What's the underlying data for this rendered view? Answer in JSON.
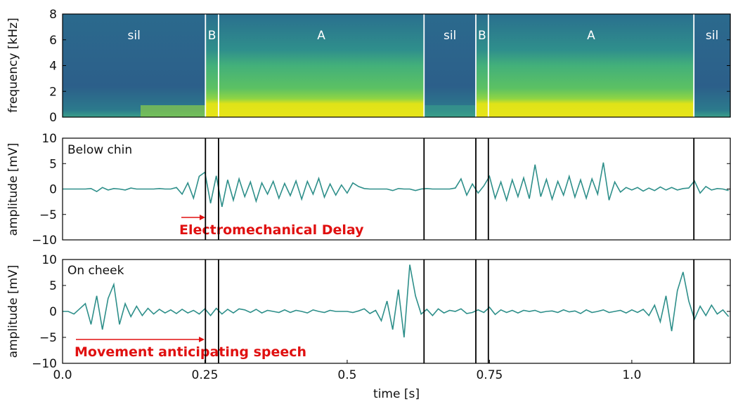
{
  "chart_data": [
    {
      "type": "spectrogram",
      "ylabel": "frequency [kHz]",
      "ylim": [
        0,
        8
      ],
      "yticks": [
        0,
        2,
        4,
        6,
        8
      ],
      "xlim": [
        0,
        1.173
      ],
      "labels": [
        "sil",
        "B",
        "A",
        "sil",
        "B",
        "A",
        "sil"
      ],
      "boundaries": [
        0.251,
        0.274,
        0.635,
        0.726,
        0.748,
        1.109
      ],
      "boundary_color": "#ffffff"
    },
    {
      "type": "line",
      "label": "Below chin",
      "note": "Electromechanical Delay",
      "ylabel": "amplitude [mV]",
      "color": "#2e8f8a",
      "ylim": [
        -10,
        10
      ],
      "yticks": [
        {
          "value": -10,
          "label": "−10"
        },
        {
          "value": -5,
          "label": "−5"
        },
        0,
        5,
        10
      ],
      "xlim": [
        0,
        1.173
      ],
      "x": [
        0,
        0.01,
        0.02,
        0.03,
        0.04,
        0.05,
        0.06,
        0.07,
        0.08,
        0.09,
        0.1,
        0.11,
        0.12,
        0.13,
        0.14,
        0.15,
        0.16,
        0.17,
        0.18,
        0.19,
        0.2,
        0.21,
        0.22,
        0.23,
        0.24,
        0.25,
        0.26,
        0.27,
        0.28,
        0.29,
        0.3,
        0.31,
        0.32,
        0.33,
        0.34,
        0.35,
        0.36,
        0.37,
        0.38,
        0.39,
        0.4,
        0.41,
        0.42,
        0.43,
        0.44,
        0.45,
        0.46,
        0.47,
        0.48,
        0.49,
        0.5,
        0.51,
        0.52,
        0.53,
        0.54,
        0.55,
        0.56,
        0.57,
        0.58,
        0.59,
        0.6,
        0.61,
        0.62,
        0.63,
        0.64,
        0.65,
        0.66,
        0.67,
        0.68,
        0.69,
        0.7,
        0.71,
        0.72,
        0.73,
        0.74,
        0.75,
        0.76,
        0.77,
        0.78,
        0.79,
        0.8,
        0.81,
        0.82,
        0.83,
        0.84,
        0.85,
        0.86,
        0.87,
        0.88,
        0.89,
        0.9,
        0.91,
        0.92,
        0.93,
        0.94,
        0.95,
        0.96,
        0.97,
        0.98,
        0.99,
        1,
        1.01,
        1.02,
        1.03,
        1.04,
        1.05,
        1.06,
        1.07,
        1.08,
        1.09,
        1.1,
        1.11,
        1.12,
        1.13,
        1.14,
        1.15,
        1.16,
        1.17
      ],
      "values": [
        0,
        0,
        0,
        0,
        0,
        0.1,
        -0.5,
        0.3,
        -0.2,
        0.1,
        0,
        -0.2,
        0.2,
        0,
        0,
        0,
        0,
        0.1,
        0,
        0,
        0.3,
        -1,
        1.2,
        -1.8,
        2.5,
        3.3,
        -2.8,
        2.6,
        -3.5,
        1.8,
        -2.2,
        2,
        -1.5,
        1.4,
        -2.4,
        1.2,
        -1,
        1.5,
        -1.8,
        1.1,
        -1.3,
        1.6,
        -2,
        1.5,
        -1,
        2.1,
        -1.6,
        1,
        -1.2,
        0.8,
        -0.8,
        1.2,
        0.5,
        0.1,
        0,
        0,
        0,
        0,
        -0.3,
        0.1,
        0,
        0,
        -0.3,
        0,
        0.1,
        0,
        0,
        0,
        0,
        0.2,
        2,
        -1.2,
        1,
        -0.8,
        0.6,
        2.5,
        -1.8,
        1.4,
        -2.2,
        1.8,
        -1.5,
        2.2,
        -1.9,
        4.8,
        -1.5,
        1.9,
        -2,
        1.5,
        -1.2,
        2.5,
        -1.6,
        1.8,
        -1.8,
        2,
        -1,
        5.2,
        -2.2,
        1.4,
        -0.6,
        0.3,
        -0.2,
        0.3,
        -0.4,
        0.2,
        -0.3,
        0.4,
        -0.2,
        0.3,
        -0.2,
        0.1,
        0.2,
        1.6,
        -0.8,
        0.5,
        -0.2,
        0.1,
        0,
        -0.3
      ]
    },
    {
      "type": "line",
      "label": "On cheek",
      "note": "Movement anticipating speech",
      "ylabel": "amplitude [mV]",
      "xlabel": "time [s]",
      "color": "#2e8f8a",
      "ylim": [
        -10,
        10
      ],
      "yticks": [
        {
          "value": -10,
          "label": "−10"
        },
        {
          "value": -5,
          "label": "−5"
        },
        0,
        5,
        10
      ],
      "xlim": [
        0,
        1.173
      ],
      "xticks": [
        {
          "value": 0,
          "label": "0.0"
        },
        0.25,
        0.5,
        0.75,
        {
          "value": 1,
          "label": "1.0"
        }
      ],
      "x": [
        0,
        0.01,
        0.02,
        0.03,
        0.04,
        0.05,
        0.06,
        0.07,
        0.08,
        0.09,
        0.1,
        0.11,
        0.12,
        0.13,
        0.14,
        0.15,
        0.16,
        0.17,
        0.18,
        0.19,
        0.2,
        0.21,
        0.22,
        0.23,
        0.24,
        0.25,
        0.26,
        0.27,
        0.28,
        0.29,
        0.3,
        0.31,
        0.32,
        0.33,
        0.34,
        0.35,
        0.36,
        0.37,
        0.38,
        0.39,
        0.4,
        0.41,
        0.42,
        0.43,
        0.44,
        0.45,
        0.46,
        0.47,
        0.48,
        0.49,
        0.5,
        0.51,
        0.52,
        0.53,
        0.54,
        0.55,
        0.56,
        0.57,
        0.58,
        0.59,
        0.6,
        0.61,
        0.62,
        0.63,
        0.64,
        0.65,
        0.66,
        0.67,
        0.68,
        0.69,
        0.7,
        0.71,
        0.72,
        0.73,
        0.74,
        0.75,
        0.76,
        0.77,
        0.78,
        0.79,
        0.8,
        0.81,
        0.82,
        0.83,
        0.84,
        0.85,
        0.86,
        0.87,
        0.88,
        0.89,
        0.9,
        0.91,
        0.92,
        0.93,
        0.94,
        0.95,
        0.96,
        0.97,
        0.98,
        0.99,
        1,
        1.01,
        1.02,
        1.03,
        1.04,
        1.05,
        1.06,
        1.07,
        1.08,
        1.09,
        1.1,
        1.11,
        1.12,
        1.13,
        1.14,
        1.15,
        1.16,
        1.17
      ],
      "values": [
        0,
        0,
        -0.5,
        0.5,
        1.5,
        -2.5,
        3,
        -3.5,
        2.5,
        5.2,
        -2.5,
        1.5,
        -1,
        1,
        -0.8,
        0.6,
        -0.5,
        0.4,
        -0.3,
        0.3,
        -0.4,
        0.4,
        -0.3,
        0.2,
        -0.5,
        0.5,
        -0.8,
        0.6,
        -0.5,
        0.4,
        -0.3,
        0.5,
        0.3,
        -0.2,
        0.4,
        -0.3,
        0.2,
        0,
        -0.2,
        0.3,
        -0.2,
        0.2,
        0,
        -0.3,
        0.3,
        0,
        -0.2,
        0.2,
        0,
        0,
        0,
        -0.2,
        0.1,
        0.5,
        -0.4,
        0.2,
        -1.8,
        2,
        -3.5,
        4.2,
        -5,
        9,
        3,
        -0.5,
        0.4,
        -0.8,
        0.5,
        -0.3,
        0.2,
        0,
        0.5,
        -0.4,
        -0.2,
        0.3,
        -0.2,
        0.8,
        -0.6,
        0.3,
        -0.2,
        0.2,
        -0.3,
        0.2,
        0,
        0.2,
        -0.2,
        0,
        0.1,
        -0.2,
        0.3,
        -0.1,
        0.1,
        -0.4,
        0.3,
        -0.2,
        0,
        0.3,
        -0.2,
        0,
        0.2,
        -0.3,
        0.3,
        -0.2,
        0.4,
        -0.8,
        1.2,
        -2,
        3,
        -3.8,
        4,
        7.6,
        2,
        -1.5,
        1,
        -0.8,
        1.2,
        -0.5,
        0.3,
        -1
      ]
    }
  ]
}
